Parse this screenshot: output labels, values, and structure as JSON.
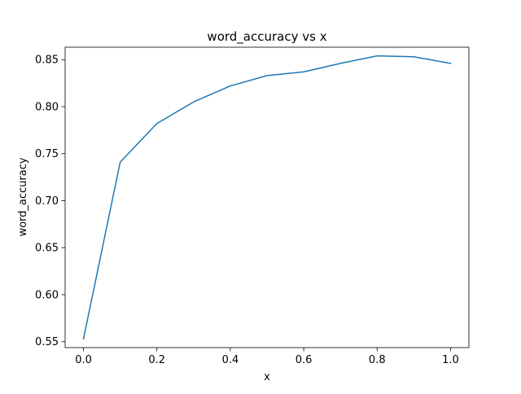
{
  "chart_data": {
    "type": "line",
    "title": "word_accuracy vs x",
    "xlabel": "x",
    "ylabel": "word_accuracy",
    "xlim": [
      -0.05,
      1.05
    ],
    "ylim": [
      0.5437,
      0.8632
    ],
    "x_ticks": [
      0.0,
      0.2,
      0.4,
      0.6,
      0.8,
      1.0
    ],
    "x_tick_labels": [
      "0.0",
      "0.2",
      "0.4",
      "0.6",
      "0.8",
      "1.0"
    ],
    "y_ticks": [
      0.55,
      0.6,
      0.65,
      0.7,
      0.75,
      0.8,
      0.85
    ],
    "y_tick_labels": [
      "0.55",
      "0.60",
      "0.65",
      "0.70",
      "0.75",
      "0.80",
      "0.85"
    ],
    "grid": false,
    "series": [
      {
        "color": "#1f77b4",
        "x": [
          0.0,
          0.1,
          0.2,
          0.3,
          0.4,
          0.5,
          0.6,
          0.7,
          0.8,
          0.9,
          1.0
        ],
        "y": [
          0.553,
          0.741,
          0.782,
          0.805,
          0.822,
          0.833,
          0.837,
          0.846,
          0.854,
          0.853,
          0.846
        ]
      }
    ]
  }
}
